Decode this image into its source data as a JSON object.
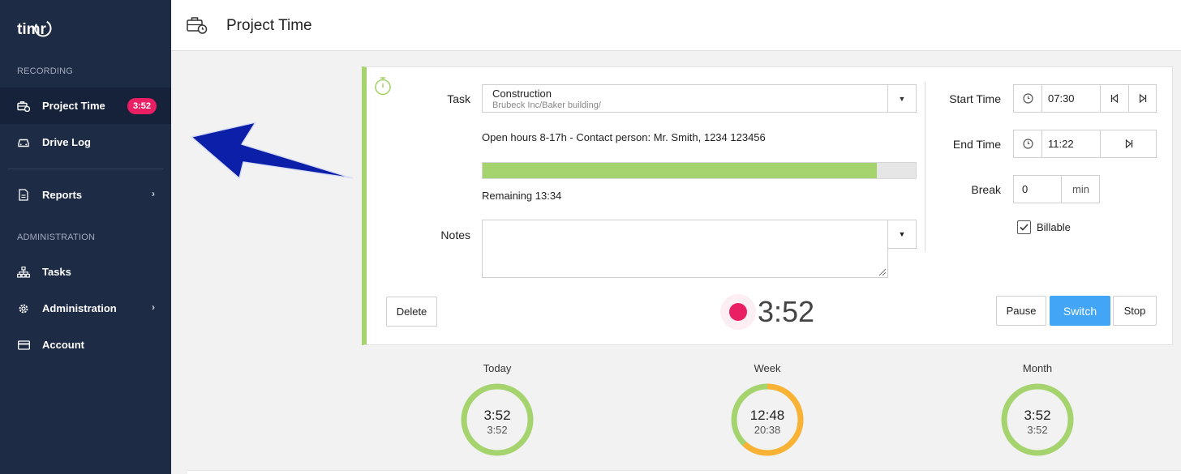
{
  "app": {
    "logo_text": "timr"
  },
  "sidebar": {
    "sections": {
      "recording": "RECORDING",
      "administration": "ADMINISTRATION"
    },
    "items": [
      {
        "label": "Project Time",
        "badge": "3:52",
        "icon": "briefcase-clock-icon"
      },
      {
        "label": "Drive Log",
        "icon": "car-icon"
      },
      {
        "label": "Reports",
        "icon": "document-icon"
      },
      {
        "label": "Tasks",
        "icon": "sitemap-icon"
      },
      {
        "label": "Administration",
        "icon": "gear-icon"
      },
      {
        "label": "Account",
        "icon": "credit-card-icon"
      }
    ]
  },
  "header": {
    "title": "Project Time"
  },
  "form": {
    "task_label": "Task",
    "task_value": "Construction",
    "task_path": "Brubeck Inc/Baker building/",
    "info": "Open hours 8-17h - Contact person: Mr. Smith, 1234 123456",
    "progress_fraction": 0.91,
    "remaining": "Remaining 13:34",
    "notes_label": "Notes",
    "notes_value": "",
    "start_label": "Start Time",
    "start_value": "07:30",
    "end_label": "End Time",
    "end_value": "11:22",
    "break_label": "Break",
    "break_value": "0",
    "break_unit": "min",
    "billable_label": "Billable",
    "billable_checked": true
  },
  "actions": {
    "delete": "Delete",
    "pause": "Pause",
    "switch": "Switch",
    "stop": "Stop"
  },
  "timer": {
    "elapsed": "3:52"
  },
  "stats": [
    {
      "label": "Today",
      "value": "3:52",
      "sub": "3:52",
      "fraction": 1.0,
      "color": "#a5d36e"
    },
    {
      "label": "Week",
      "value": "12:48",
      "sub": "20:38",
      "fraction": 0.62,
      "color": "#f9b233"
    },
    {
      "label": "Month",
      "value": "3:52",
      "sub": "3:52",
      "fraction": 1.0,
      "color": "#a5d36e"
    }
  ],
  "colors": {
    "sidebar": "#1d2b45",
    "accent_green": "#a5d36e",
    "accent_orange": "#f9b233",
    "primary": "#42a5f5",
    "record": "#e91e63"
  }
}
